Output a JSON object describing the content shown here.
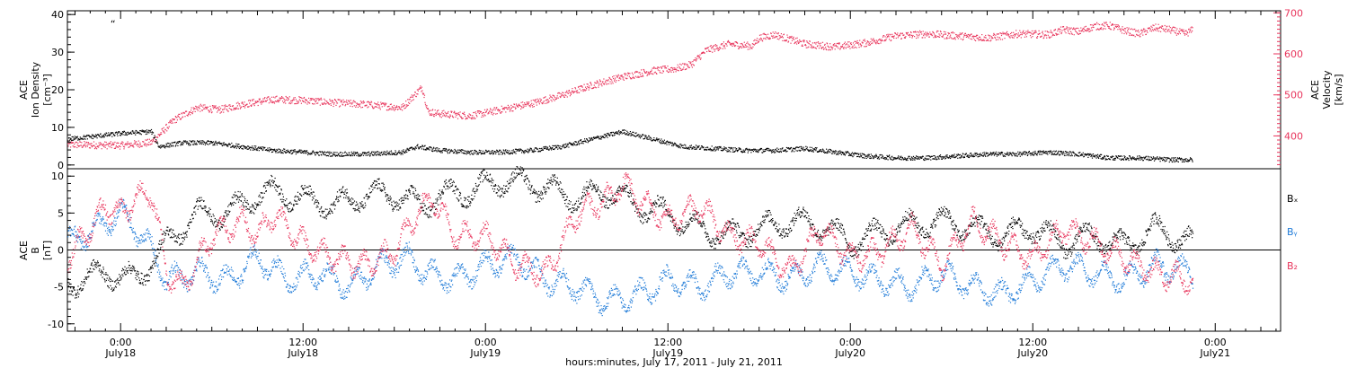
{
  "chart_data": [
    {
      "panel": "top",
      "type": "scatter",
      "ylabel_left": [
        "ACE",
        "Ion Density",
        "[cm⁻³]"
      ],
      "ylabel_right": [
        "ACE",
        "Velocity",
        "[km/s]"
      ],
      "ylim_left": [
        -1,
        41
      ],
      "yticks_left": [
        0,
        10,
        20,
        30,
        40
      ],
      "ylim_right": [
        320,
        705
      ],
      "yticks_right": [
        400,
        500,
        600,
        700
      ],
      "xlim_hours": [
        -3.5,
        76.3
      ],
      "data_end_hours": 70.5,
      "series": [
        {
          "name": "Velocity",
          "axis": "right",
          "color": "#E8365D",
          "x": [
            -3.5,
            0,
            2,
            3.5,
            5,
            6.5,
            8,
            10,
            12,
            14,
            16,
            18.5,
            19.8,
            20.2,
            21,
            23,
            25,
            27,
            29,
            31,
            33,
            35,
            36.5,
            37.5,
            38.5,
            40,
            41.5,
            42,
            43,
            45,
            47,
            49,
            51,
            53,
            55,
            57,
            59,
            61,
            62,
            63,
            64,
            65,
            66,
            67,
            68,
            69,
            70,
            70.5
          ],
          "y": [
            380,
            378,
            385,
            440,
            470,
            465,
            478,
            490,
            488,
            482,
            478,
            470,
            520,
            460,
            455,
            450,
            465,
            480,
            500,
            525,
            545,
            560,
            565,
            575,
            610,
            625,
            620,
            640,
            648,
            625,
            618,
            628,
            645,
            650,
            645,
            640,
            650,
            648,
            660,
            655,
            668,
            670,
            658,
            650,
            665,
            660,
            650,
            660
          ]
        },
        {
          "name": "Ion Density",
          "axis": "left",
          "color": "#000000",
          "x": [
            -3.5,
            0,
            2,
            2.5,
            4,
            6,
            8,
            10,
            12,
            14,
            16,
            18.5,
            19.5,
            21,
            23,
            25,
            27,
            29,
            31,
            33,
            35,
            37,
            39,
            41,
            43,
            45,
            47,
            49,
            51,
            53,
            55,
            57,
            59,
            61,
            63,
            65,
            67,
            69,
            70.5
          ],
          "y": [
            7,
            8.5,
            9,
            5,
            6,
            6,
            5,
            4,
            3.5,
            3,
            3,
            3.5,
            5,
            4,
            3.5,
            3.5,
            4,
            5,
            7,
            9,
            7,
            5,
            4.5,
            4,
            4,
            4.5,
            3.5,
            2.5,
            2,
            2,
            2.5,
            3,
            3,
            3.5,
            3,
            2,
            2,
            1.5,
            1.5
          ]
        }
      ],
      "annotations": [
        {
          "text": "“",
          "x": -0.5,
          "y": 38.5
        }
      ]
    },
    {
      "panel": "bottom",
      "type": "scatter",
      "ylabel": [
        "ACE",
        "B",
        "[nT]"
      ],
      "ylim": [
        -11,
        11
      ],
      "yticks": [
        -10,
        -5,
        0,
        5,
        10
      ],
      "zero_line": true,
      "xlim_hours": [
        -3.5,
        76.3
      ],
      "data_end_hours": 70.5,
      "legend": [
        "Bₓ",
        "Bᵧ",
        "B₂"
      ],
      "series": [
        {
          "name": "Bₓ",
          "color": "#000000",
          "x": [
            -3.5,
            -1,
            1,
            3,
            5,
            7,
            9,
            10,
            12,
            14,
            16,
            18,
            19.8,
            21,
            23,
            25,
            27,
            28.5,
            30,
            32,
            34,
            36,
            38,
            40,
            42,
            44,
            46,
            48,
            50,
            52,
            54,
            56,
            58,
            60,
            62,
            64,
            66,
            68,
            70.5
          ],
          "y": [
            -4.5,
            -3,
            -4,
            1,
            5,
            5,
            7.5,
            8,
            7,
            6,
            7.5,
            7.5,
            6,
            7.5,
            8,
            9.5,
            9,
            8,
            7,
            8,
            6,
            5,
            3,
            2,
            3,
            4,
            3.5,
            1,
            2.5,
            3.5,
            4,
            3,
            2,
            3,
            1,
            2,
            0.5,
            3,
            1
          ]
        },
        {
          "name": "Bᵧ",
          "color": "#1F7BD8",
          "x": [
            -3.5,
            -1.5,
            0,
            1,
            2,
            3,
            5,
            7,
            9,
            11,
            13,
            15,
            17,
            19,
            20,
            22,
            24,
            26,
            28,
            30,
            32,
            34,
            36,
            38,
            40,
            42,
            44,
            46,
            48,
            50,
            52,
            54,
            56,
            58,
            60,
            62,
            64,
            66,
            68,
            70.5
          ],
          "y": [
            1,
            3,
            5,
            3,
            0,
            -4,
            -3,
            -4,
            -1,
            -4,
            -3,
            -5,
            -2,
            -1,
            -3,
            -4,
            -2,
            -1,
            -4,
            -5,
            -7,
            -6,
            -4,
            -5,
            -3,
            -3,
            -4,
            -2,
            -3,
            -4,
            -5,
            -3,
            -5,
            -6,
            -4,
            -2,
            -3,
            -4,
            -2,
            -3
          ]
        },
        {
          "name": "B₂",
          "color": "#E8365D",
          "x": [
            -3.5,
            -2,
            -1,
            0,
            1,
            2,
            3,
            4,
            6,
            8,
            9,
            10,
            12,
            14,
            16,
            18,
            19.5,
            20.5,
            22,
            24,
            26,
            28,
            30,
            32,
            33,
            34,
            36,
            38,
            40,
            42,
            44,
            46,
            48,
            50,
            52,
            54,
            56,
            58,
            60,
            62,
            64,
            66,
            68,
            70.5
          ],
          "y": [
            -1,
            3,
            6,
            5,
            7,
            8,
            -3,
            -5,
            2,
            4,
            2,
            5,
            1,
            -1,
            -2,
            0,
            5,
            7,
            2,
            2,
            -2,
            -3,
            5,
            7,
            9,
            7,
            4,
            6,
            2,
            1,
            -3,
            3,
            -1,
            0,
            3,
            -2,
            4,
            1,
            -1,
            3,
            1,
            -1,
            -3,
            -4
          ]
        }
      ]
    }
  ],
  "xaxis": {
    "title": "hours:minutes, July 17, 2011 - July 21, 2011",
    "ticks": [
      {
        "hours": 0,
        "time": "0:00",
        "date": "July18"
      },
      {
        "hours": 12,
        "time": "12:00",
        "date": "July18"
      },
      {
        "hours": 24,
        "time": "0:00",
        "date": "July19"
      },
      {
        "hours": 36,
        "time": "12:00",
        "date": "July19"
      },
      {
        "hours": 48,
        "time": "0:00",
        "date": "July20"
      },
      {
        "hours": 60,
        "time": "12:00",
        "date": "July20"
      },
      {
        "hours": 72,
        "time": "0:00",
        "date": "July21"
      }
    ]
  }
}
